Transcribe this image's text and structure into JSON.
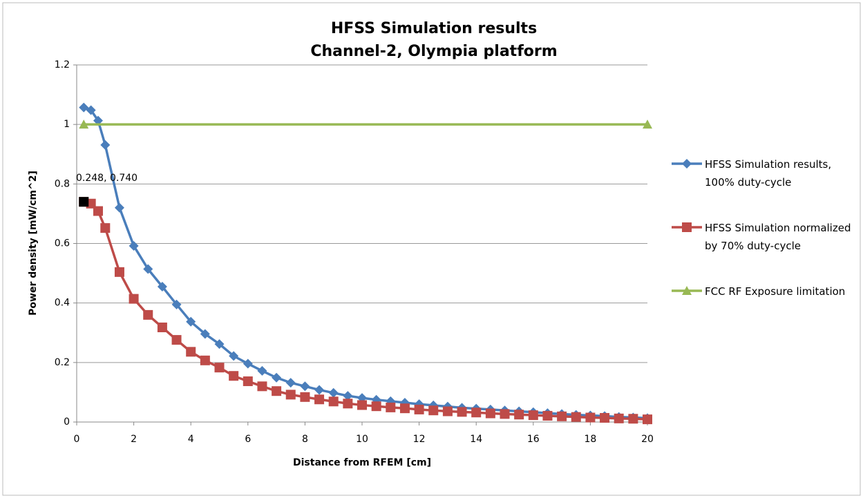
{
  "chart_data": {
    "type": "line",
    "title": "HFSS Simulation results",
    "subtitle": "Channel-2, Olympia platform",
    "x_label": "Distance from RFEM [cm]",
    "y_label": "Power density [mW/cm^2]",
    "xlim": [
      0,
      20
    ],
    "xticks": [
      0,
      2,
      4,
      6,
      8,
      10,
      12,
      14,
      16,
      18,
      20
    ],
    "ylim": [
      0,
      1.2
    ],
    "yticks": [
      0,
      0.2,
      0.4,
      0.6,
      0.8,
      1,
      1.2
    ],
    "grid": true,
    "legend": "right",
    "annotation": "0.248, 0.740",
    "series": [
      {
        "name": "HFSS Simulation results, 100% duty-cycle",
        "color": "#4a7ebb",
        "marker": "diamond",
        "x": [
          0.248,
          0.5,
          0.75,
          1,
          1.5,
          2,
          2.5,
          3,
          3.5,
          4,
          4.5,
          5,
          5.5,
          6,
          6.5,
          7,
          7.5,
          8,
          8.5,
          9,
          9.5,
          10,
          10.5,
          11,
          11.5,
          12,
          12.5,
          13,
          13.5,
          14,
          14.5,
          15,
          15.5,
          16,
          16.5,
          17,
          17.5,
          18,
          18.5,
          19,
          19.5,
          20
        ],
        "values": [
          1.057,
          1.048,
          1.013,
          0.931,
          0.72,
          0.592,
          0.514,
          0.455,
          0.395,
          0.337,
          0.296,
          0.262,
          0.222,
          0.196,
          0.172,
          0.149,
          0.132,
          0.12,
          0.108,
          0.098,
          0.088,
          0.081,
          0.075,
          0.07,
          0.065,
          0.06,
          0.056,
          0.052,
          0.048,
          0.045,
          0.042,
          0.039,
          0.036,
          0.033,
          0.03,
          0.027,
          0.024,
          0.022,
          0.02,
          0.017,
          0.015,
          0.013
        ]
      },
      {
        "name": "HFSS Simulation normalized by 70% duty-cycle",
        "color": "#be4b48",
        "marker": "square",
        "x": [
          0.248,
          0.5,
          0.75,
          1,
          1.5,
          2,
          2.5,
          3,
          3.5,
          4,
          4.5,
          5,
          5.5,
          6,
          6.5,
          7,
          7.5,
          8,
          8.5,
          9,
          9.5,
          10,
          10.5,
          11,
          11.5,
          12,
          12.5,
          13,
          13.5,
          14,
          14.5,
          15,
          15.5,
          16,
          16.5,
          17,
          17.5,
          18,
          18.5,
          19,
          19.5,
          20
        ],
        "values": [
          0.74,
          0.734,
          0.709,
          0.652,
          0.504,
          0.414,
          0.36,
          0.318,
          0.276,
          0.236,
          0.207,
          0.183,
          0.155,
          0.137,
          0.12,
          0.104,
          0.092,
          0.084,
          0.076,
          0.069,
          0.062,
          0.057,
          0.053,
          0.049,
          0.046,
          0.042,
          0.039,
          0.036,
          0.034,
          0.032,
          0.029,
          0.027,
          0.025,
          0.023,
          0.021,
          0.019,
          0.017,
          0.015,
          0.014,
          0.012,
          0.011,
          0.009
        ]
      },
      {
        "name": "FCC RF Exposure limitation",
        "color": "#98b954",
        "marker": "triangle",
        "x": [
          0.248,
          20
        ],
        "values": [
          1,
          1
        ]
      }
    ]
  }
}
